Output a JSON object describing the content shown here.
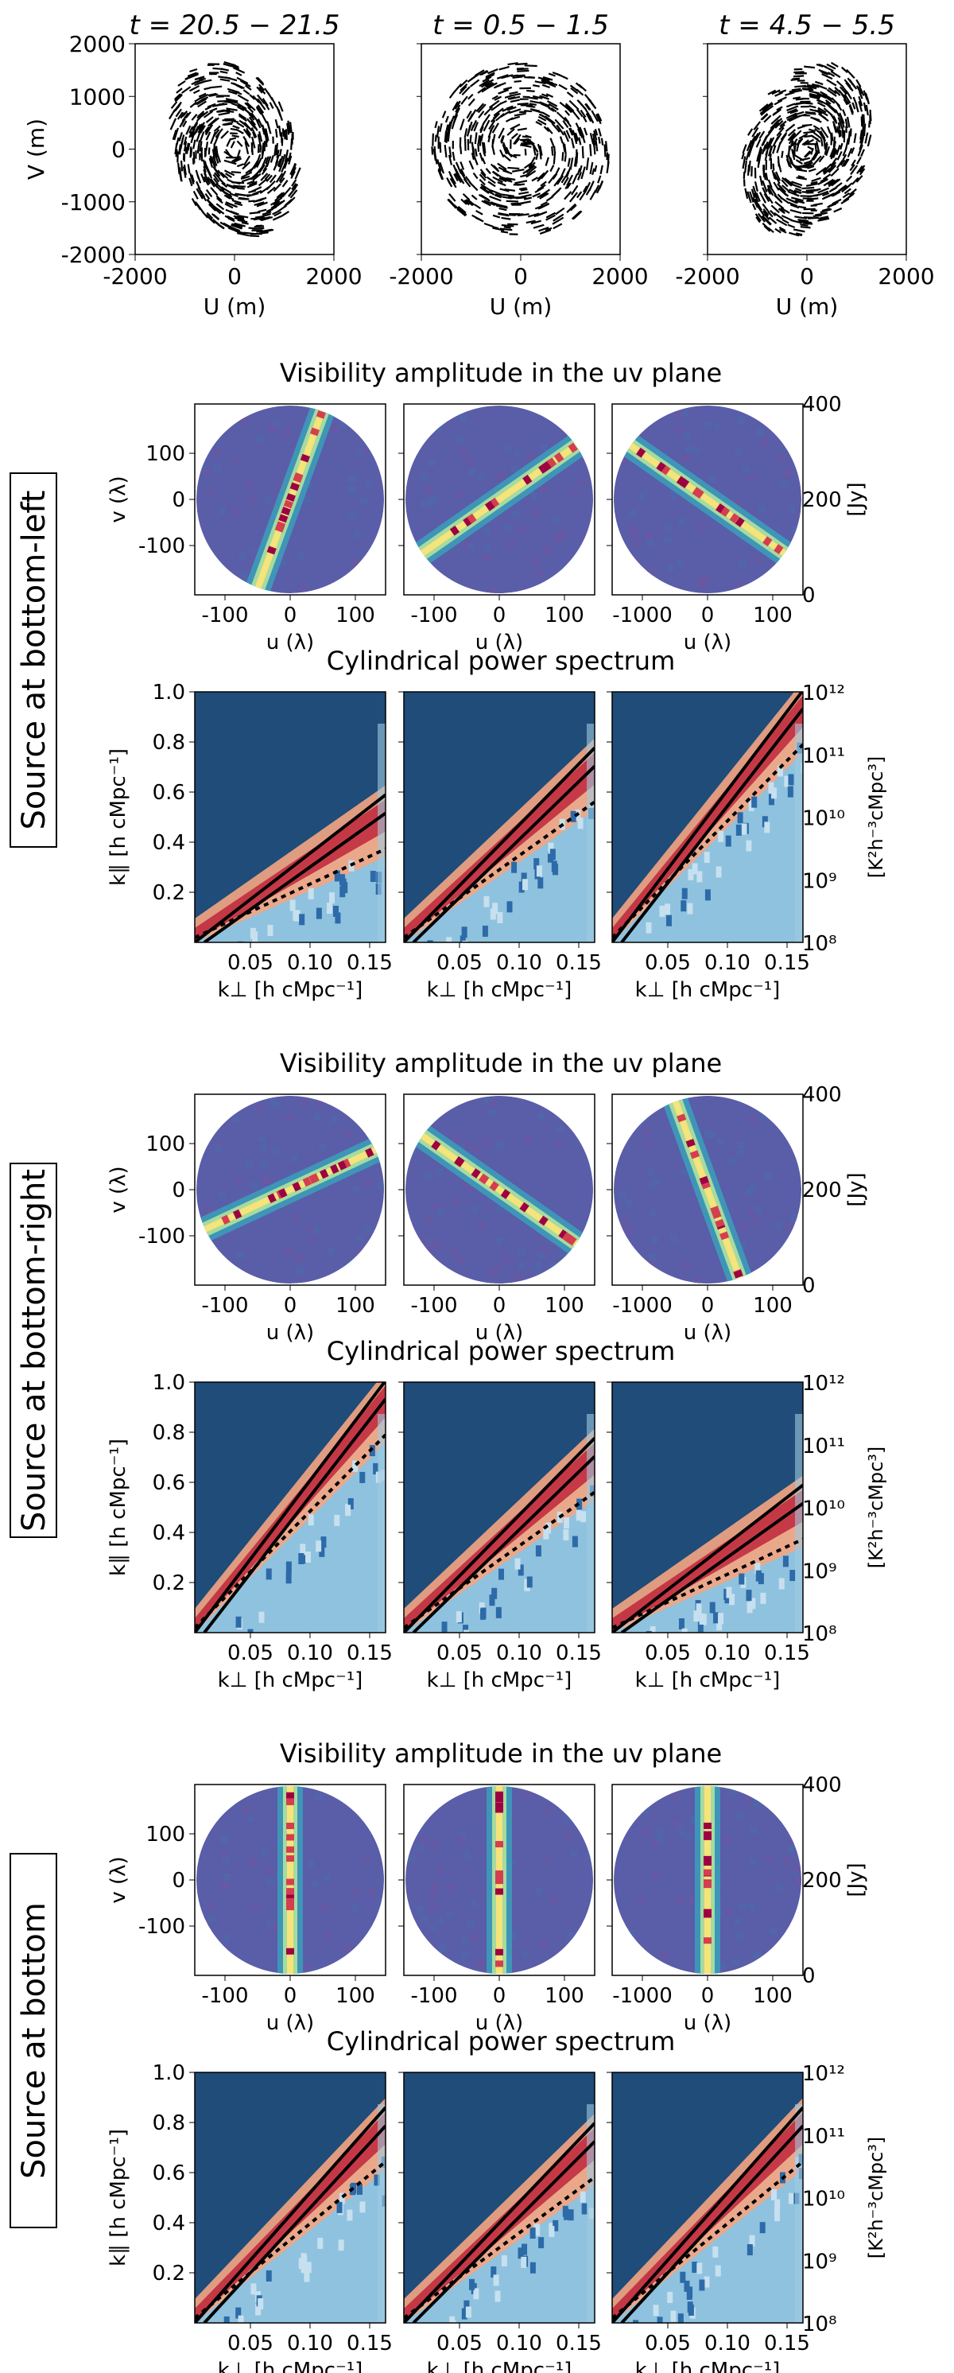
{
  "uv_tracks": {
    "ylabel": "V (m)",
    "xlabel": "U (m)",
    "ticks": [
      "-2000",
      "0",
      "2000"
    ],
    "yticks": [
      "2000",
      "1000",
      "0",
      "-1000",
      "-2000"
    ],
    "panels": [
      {
        "title": "t = 20.5 − 21.5",
        "tilt_deg": -20
      },
      {
        "title": "t = 0.5 − 1.5",
        "tilt_deg": 0
      },
      {
        "title": "t = 4.5 − 5.5",
        "tilt_deg": 20
      }
    ]
  },
  "vis_title": "Visibility amplitude in the uv plane",
  "ps_title": "Cylindrical power spectrum",
  "vis_axes": {
    "ylabel": "v (λ)",
    "xlabel": "u (λ)",
    "yticks": [
      "100",
      "0",
      "-100"
    ],
    "xticks": [
      "-100",
      "0",
      "100"
    ],
    "xticks_third": [
      "-1000",
      "0",
      "100"
    ],
    "cbar_ticks": [
      "400",
      "200",
      "0"
    ],
    "cbar_label": "[Jy]"
  },
  "ps_axes": {
    "ylabel": "k∥ [h cMpc⁻¹]",
    "xlabel": "k⊥ [h cMpc⁻¹]",
    "yticks": [
      "1.0",
      "0.8",
      "0.6",
      "0.4",
      "0.2"
    ],
    "xticks": [
      "0.05",
      "0.10",
      "0.15"
    ],
    "cbar_ticks": [
      "10¹²",
      "10¹¹",
      "10¹⁰",
      "10⁹",
      "10⁸"
    ],
    "cbar_label": "[K²h⁻³cMpc³]"
  },
  "sections": [
    {
      "label": "Source at bottom-left",
      "vis_angles": [
        70,
        35,
        -35
      ],
      "ps_slopes": [
        0.0,
        0.0,
        0.0
      ]
    },
    {
      "label": "Source at bottom-right",
      "vis_angles": [
        25,
        -35,
        -70
      ],
      "ps_slopes": [
        0.0,
        0.0,
        0.0
      ]
    },
    {
      "label": "Source at bottom",
      "vis_angles": [
        90,
        90,
        90
      ],
      "ps_slopes": [
        0.0,
        0.0,
        0.0
      ]
    }
  ],
  "chart_data": [
    {
      "type": "scatter",
      "title": "t = 20.5 − 21.5",
      "xlabel": "U (m)",
      "ylabel": "V (m)",
      "xlim": [
        -2000,
        2000
      ],
      "ylim": [
        -2000,
        2000
      ]
    },
    {
      "type": "scatter",
      "title": "t = 0.5 − 1.5",
      "xlabel": "U (m)",
      "ylabel": "V (m)",
      "xlim": [
        -2000,
        2000
      ],
      "ylim": [
        -2000,
        2000
      ]
    },
    {
      "type": "scatter",
      "title": "t = 4.5 − 5.5",
      "xlabel": "U (m)",
      "ylabel": "V (m)",
      "xlim": [
        -2000,
        2000
      ],
      "ylim": [
        -2000,
        2000
      ]
    },
    {
      "type": "heatmap",
      "title": "Visibility amplitude in the uv plane",
      "xlabel": "u (λ)",
      "ylabel": "v (λ)",
      "colorbar_range": [
        0,
        400
      ],
      "colorbar_unit": "Jy"
    },
    {
      "type": "heatmap",
      "title": "Cylindrical power spectrum",
      "xlabel": "k⊥ [h cMpc⁻¹]",
      "ylabel": "k∥ [h cMpc⁻¹]",
      "xlim": [
        0.0,
        0.17
      ],
      "ylim": [
        0.05,
        1.0
      ],
      "colorbar_range": [
        100000000.0,
        1000000000000.0
      ],
      "colorbar_scale": "log",
      "wedge_slopes": {
        "bottom-left": [
          2.4,
          3.3,
          4.4
        ],
        "bottom-right": [
          4.4,
          3.3,
          2.4
        ],
        "bottom": [
          3.7,
          3.4,
          3.7
        ]
      }
    }
  ]
}
